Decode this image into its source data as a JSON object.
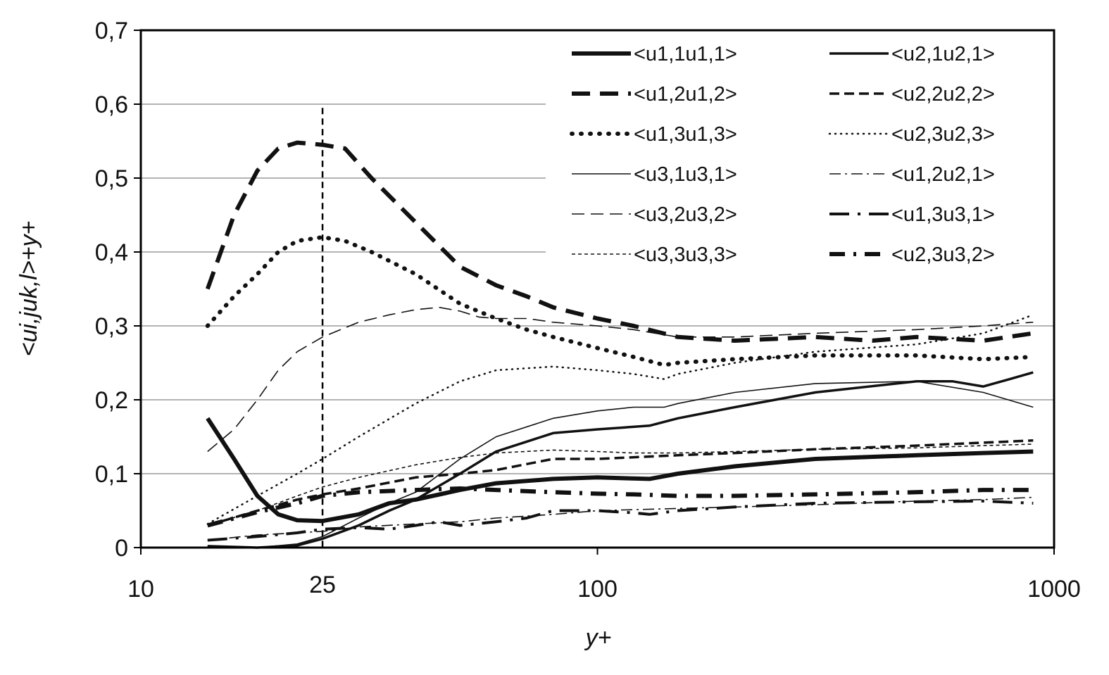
{
  "chart_data": {
    "type": "line",
    "xlabel": "y+",
    "ylabel": "<ui,juk,l>+y+",
    "xscale": "log",
    "xlim": [
      10,
      1000
    ],
    "ylim": [
      0,
      0.7
    ],
    "x_ticks": [
      "10",
      "25",
      "100",
      "1000"
    ],
    "y_ticks": [
      "0",
      "0,1",
      "0,2",
      "0,3",
      "0,4",
      "0,5",
      "0,6",
      "0,7"
    ],
    "grid": "horizontal",
    "legend_position": "top-right",
    "reference_line": {
      "x": 25,
      "style": "dashed"
    },
    "series": [
      {
        "name": "<u1,1u1,1>",
        "points": [
          [
            14,
            0.175
          ],
          [
            16,
            0.12
          ],
          [
            18,
            0.07
          ],
          [
            20,
            0.045
          ],
          [
            22,
            0.037
          ],
          [
            25,
            0.036
          ],
          [
            30,
            0.045
          ],
          [
            35,
            0.06
          ],
          [
            40,
            0.065
          ],
          [
            50,
            0.078
          ],
          [
            60,
            0.087
          ],
          [
            80,
            0.093
          ],
          [
            100,
            0.095
          ],
          [
            130,
            0.093
          ],
          [
            150,
            0.1
          ],
          [
            200,
            0.11
          ],
          [
            300,
            0.12
          ],
          [
            500,
            0.125
          ],
          [
            700,
            0.128
          ],
          [
            900,
            0.13
          ]
        ]
      },
      {
        "name": "<u2,1u2,1>",
        "points": [
          [
            14,
            0.002
          ],
          [
            18,
            0.0
          ],
          [
            22,
            0.003
          ],
          [
            25,
            0.012
          ],
          [
            30,
            0.03
          ],
          [
            35,
            0.05
          ],
          [
            40,
            0.065
          ],
          [
            50,
            0.1
          ],
          [
            60,
            0.13
          ],
          [
            80,
            0.155
          ],
          [
            100,
            0.16
          ],
          [
            130,
            0.165
          ],
          [
            150,
            0.175
          ],
          [
            200,
            0.19
          ],
          [
            300,
            0.21
          ],
          [
            500,
            0.225
          ],
          [
            600,
            0.225
          ],
          [
            700,
            0.218
          ],
          [
            800,
            0.228
          ],
          [
            900,
            0.237
          ]
        ]
      },
      {
        "name": "<u1,2u1,2>",
        "points": [
          [
            14,
            0.35
          ],
          [
            16,
            0.45
          ],
          [
            18,
            0.51
          ],
          [
            20,
            0.54
          ],
          [
            22,
            0.548
          ],
          [
            25,
            0.545
          ],
          [
            28,
            0.54
          ],
          [
            32,
            0.5
          ],
          [
            40,
            0.44
          ],
          [
            50,
            0.38
          ],
          [
            60,
            0.355
          ],
          [
            70,
            0.34
          ],
          [
            80,
            0.325
          ],
          [
            100,
            0.31
          ],
          [
            120,
            0.3
          ],
          [
            150,
            0.285
          ],
          [
            200,
            0.28
          ],
          [
            300,
            0.285
          ],
          [
            400,
            0.28
          ],
          [
            500,
            0.285
          ],
          [
            700,
            0.28
          ],
          [
            900,
            0.29
          ]
        ]
      },
      {
        "name": "<u2,2u2,2>",
        "points": [
          [
            14,
            0.03
          ],
          [
            18,
            0.05
          ],
          [
            22,
            0.065
          ],
          [
            25,
            0.072
          ],
          [
            30,
            0.08
          ],
          [
            40,
            0.095
          ],
          [
            50,
            0.1
          ],
          [
            60,
            0.105
          ],
          [
            80,
            0.12
          ],
          [
            100,
            0.12
          ],
          [
            150,
            0.125
          ],
          [
            200,
            0.128
          ],
          [
            300,
            0.133
          ],
          [
            500,
            0.138
          ],
          [
            700,
            0.142
          ],
          [
            900,
            0.145
          ]
        ]
      },
      {
        "name": "<u1,3u1,3>",
        "points": [
          [
            14,
            0.3
          ],
          [
            16,
            0.34
          ],
          [
            18,
            0.37
          ],
          [
            20,
            0.4
          ],
          [
            22,
            0.415
          ],
          [
            25,
            0.42
          ],
          [
            28,
            0.415
          ],
          [
            32,
            0.4
          ],
          [
            40,
            0.37
          ],
          [
            50,
            0.33
          ],
          [
            60,
            0.31
          ],
          [
            70,
            0.295
          ],
          [
            80,
            0.285
          ],
          [
            100,
            0.27
          ],
          [
            120,
            0.258
          ],
          [
            140,
            0.247
          ],
          [
            150,
            0.25
          ],
          [
            200,
            0.255
          ],
          [
            300,
            0.26
          ],
          [
            500,
            0.26
          ],
          [
            700,
            0.255
          ],
          [
            900,
            0.258
          ]
        ]
      },
      {
        "name": "<u2,3u2,3>",
        "points": [
          [
            14,
            0.032
          ],
          [
            18,
            0.07
          ],
          [
            22,
            0.1
          ],
          [
            25,
            0.12
          ],
          [
            30,
            0.15
          ],
          [
            40,
            0.195
          ],
          [
            50,
            0.225
          ],
          [
            60,
            0.24
          ],
          [
            80,
            0.245
          ],
          [
            100,
            0.24
          ],
          [
            120,
            0.235
          ],
          [
            140,
            0.228
          ],
          [
            150,
            0.235
          ],
          [
            200,
            0.25
          ],
          [
            300,
            0.265
          ],
          [
            500,
            0.275
          ],
          [
            700,
            0.29
          ],
          [
            900,
            0.315
          ]
        ]
      },
      {
        "name": "<u3,1u3,1>",
        "points": [
          [
            14,
            0.002
          ],
          [
            18,
            0.0
          ],
          [
            22,
            0.005
          ],
          [
            25,
            0.015
          ],
          [
            30,
            0.04
          ],
          [
            35,
            0.06
          ],
          [
            40,
            0.075
          ],
          [
            50,
            0.12
          ],
          [
            60,
            0.15
          ],
          [
            80,
            0.175
          ],
          [
            100,
            0.185
          ],
          [
            120,
            0.19
          ],
          [
            140,
            0.19
          ],
          [
            150,
            0.195
          ],
          [
            200,
            0.21
          ],
          [
            300,
            0.222
          ],
          [
            500,
            0.225
          ],
          [
            700,
            0.21
          ],
          [
            900,
            0.19
          ]
        ]
      },
      {
        "name": "<u1,2u2,1>",
        "points": [
          [
            14,
            0.01
          ],
          [
            18,
            0.017
          ],
          [
            22,
            0.02
          ],
          [
            25,
            0.022
          ],
          [
            30,
            0.028
          ],
          [
            40,
            0.032
          ],
          [
            50,
            0.035
          ],
          [
            60,
            0.04
          ],
          [
            80,
            0.045
          ],
          [
            100,
            0.05
          ],
          [
            150,
            0.053
          ],
          [
            200,
            0.055
          ],
          [
            300,
            0.058
          ],
          [
            500,
            0.063
          ],
          [
            700,
            0.065
          ],
          [
            900,
            0.068
          ]
        ]
      },
      {
        "name": "<u3,2u3,2>",
        "points": [
          [
            14,
            0.13
          ],
          [
            16,
            0.16
          ],
          [
            18,
            0.2
          ],
          [
            20,
            0.24
          ],
          [
            22,
            0.265
          ],
          [
            25,
            0.285
          ],
          [
            30,
            0.305
          ],
          [
            35,
            0.315
          ],
          [
            40,
            0.322
          ],
          [
            45,
            0.325
          ],
          [
            50,
            0.32
          ],
          [
            55,
            0.312
          ],
          [
            60,
            0.31
          ],
          [
            70,
            0.31
          ],
          [
            80,
            0.305
          ],
          [
            100,
            0.3
          ],
          [
            120,
            0.295
          ],
          [
            150,
            0.285
          ],
          [
            200,
            0.285
          ],
          [
            300,
            0.29
          ],
          [
            500,
            0.295
          ],
          [
            700,
            0.3
          ],
          [
            900,
            0.305
          ]
        ]
      },
      {
        "name": "<u1,3u3,1>",
        "points": [
          [
            14,
            0.01
          ],
          [
            18,
            0.015
          ],
          [
            22,
            0.02
          ],
          [
            25,
            0.025
          ],
          [
            30,
            0.027
          ],
          [
            35,
            0.025
          ],
          [
            40,
            0.03
          ],
          [
            45,
            0.035
          ],
          [
            50,
            0.03
          ],
          [
            60,
            0.035
          ],
          [
            70,
            0.04
          ],
          [
            80,
            0.05
          ],
          [
            100,
            0.05
          ],
          [
            120,
            0.047
          ],
          [
            130,
            0.045
          ],
          [
            150,
            0.05
          ],
          [
            200,
            0.055
          ],
          [
            300,
            0.06
          ],
          [
            500,
            0.062
          ],
          [
            700,
            0.063
          ],
          [
            900,
            0.06
          ]
        ]
      },
      {
        "name": "<u3,3u3,3>",
        "points": [
          [
            14,
            0.03
          ],
          [
            18,
            0.05
          ],
          [
            22,
            0.07
          ],
          [
            25,
            0.082
          ],
          [
            30,
            0.095
          ],
          [
            40,
            0.112
          ],
          [
            50,
            0.122
          ],
          [
            60,
            0.128
          ],
          [
            80,
            0.132
          ],
          [
            100,
            0.13
          ],
          [
            120,
            0.128
          ],
          [
            150,
            0.128
          ],
          [
            200,
            0.13
          ],
          [
            300,
            0.133
          ],
          [
            500,
            0.135
          ],
          [
            700,
            0.138
          ],
          [
            900,
            0.14
          ]
        ]
      },
      {
        "name": "<u2,3u3,2>",
        "points": [
          [
            14,
            0.03
          ],
          [
            18,
            0.048
          ],
          [
            22,
            0.06
          ],
          [
            25,
            0.07
          ],
          [
            30,
            0.075
          ],
          [
            40,
            0.078
          ],
          [
            50,
            0.08
          ],
          [
            60,
            0.078
          ],
          [
            80,
            0.075
          ],
          [
            100,
            0.073
          ],
          [
            120,
            0.072
          ],
          [
            150,
            0.07
          ],
          [
            200,
            0.07
          ],
          [
            300,
            0.072
          ],
          [
            500,
            0.075
          ],
          [
            700,
            0.078
          ],
          [
            900,
            0.078
          ]
        ]
      }
    ]
  }
}
